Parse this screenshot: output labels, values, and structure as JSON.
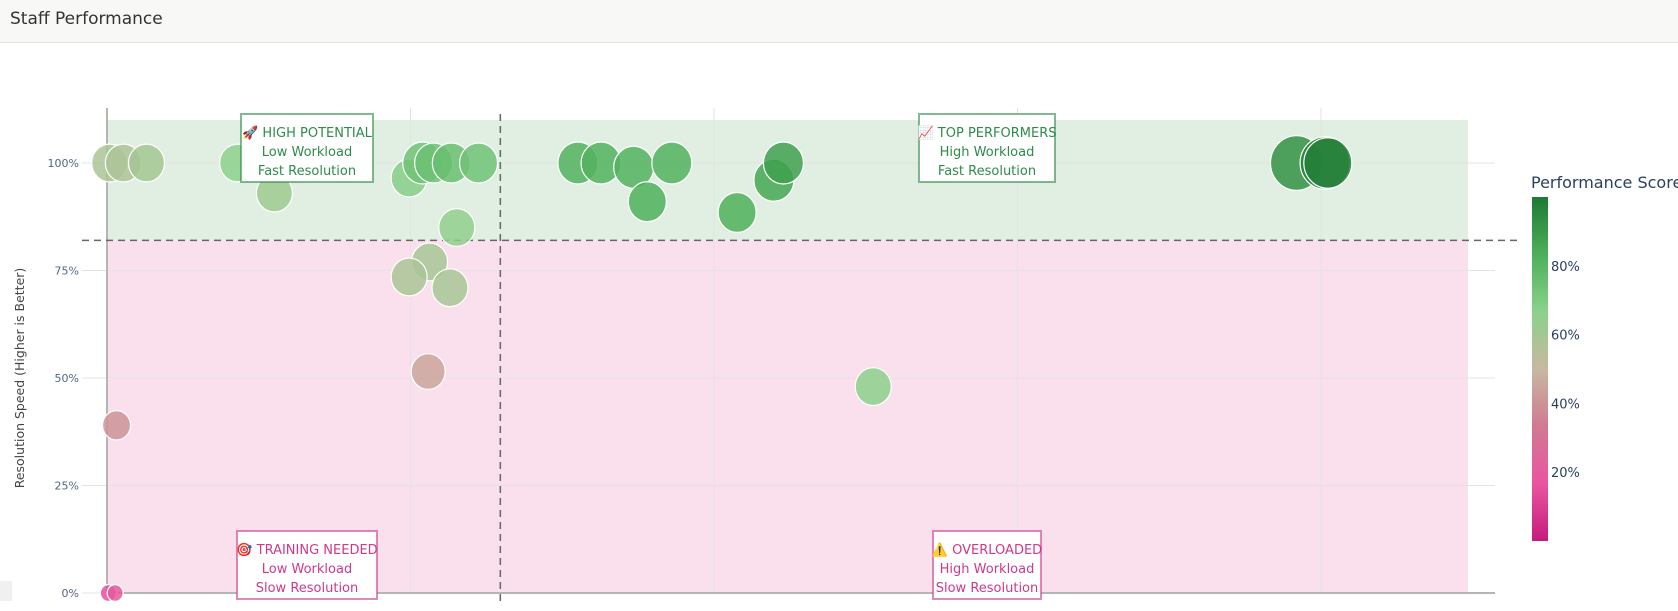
{
  "header": {
    "title": "Staff Performance"
  },
  "chart_data": {
    "type": "scatter",
    "title": "",
    "xlabel": "",
    "ylabel": "Resolution Speed (Higher is Better)",
    "ylim": [
      0,
      1.1
    ],
    "xlim": [
      0,
      1.0
    ],
    "y_ticks": [
      {
        "value": 0.0,
        "label": "0%"
      },
      {
        "value": 0.25,
        "label": "25%"
      },
      {
        "value": 0.5,
        "label": "50%"
      },
      {
        "value": 0.75,
        "label": "75%"
      },
      {
        "value": 1.0,
        "label": "100%"
      }
    ],
    "x_gridlines": [
      0.223,
      0.446,
      0.669,
      0.892
    ],
    "x_threshold": 0.289,
    "y_threshold": 0.82,
    "colorbar": {
      "title": "Performance Score",
      "range": [
        0,
        1
      ],
      "ticks": [
        {
          "value": 0.2,
          "label": "20%"
        },
        {
          "value": 0.4,
          "label": "40%"
        },
        {
          "value": 0.6,
          "label": "60%"
        },
        {
          "value": 0.8,
          "label": "80%"
        }
      ],
      "colors": [
        "#c51b7d",
        "#e9559f",
        "#d07a93",
        "#c8b8a0",
        "#8bd18b",
        "#4daf5a",
        "#1e7a34"
      ]
    },
    "quadrants": [
      {
        "id": "high-potential",
        "icon": "🚀",
        "title": "HIGH POTENTIAL",
        "line2": "Low Workload",
        "line3": "Fast Resolution",
        "color": "#2e8b4a"
      },
      {
        "id": "top-performers",
        "icon": "📈",
        "title": "TOP PERFORMERS",
        "line2": "High Workload",
        "line3": "Fast Resolution",
        "color": "#2e8b4a"
      },
      {
        "id": "training-needed",
        "icon": "🎯",
        "title": "TRAINING NEEDED",
        "line2": "Low Workload",
        "line3": "Slow Resolution",
        "color": "#cc3a8a"
      },
      {
        "id": "overloaded",
        "icon": "⚠️",
        "title": "OVERLOADED",
        "line2": "High Workload",
        "line3": "Slow Resolution",
        "color": "#cc3a8a"
      }
    ],
    "points": [
      {
        "x": 0.002,
        "y": 1.0,
        "score": 0.58,
        "size": 36
      },
      {
        "x": 0.012,
        "y": 1.0,
        "score": 0.58,
        "size": 36
      },
      {
        "x": 0.029,
        "y": 1.0,
        "score": 0.6,
        "size": 36
      },
      {
        "x": 0.096,
        "y": 1.0,
        "score": 0.66,
        "size": 36
      },
      {
        "x": 0.123,
        "y": 0.93,
        "score": 0.62,
        "size": 36
      },
      {
        "x": 0.152,
        "y": 1.0,
        "score": 0.7,
        "size": 36
      },
      {
        "x": 0.222,
        "y": 0.965,
        "score": 0.68,
        "size": 36
      },
      {
        "x": 0.232,
        "y": 1.0,
        "score": 0.74,
        "size": 40
      },
      {
        "x": 0.24,
        "y": 1.0,
        "score": 0.75,
        "size": 38
      },
      {
        "x": 0.253,
        "y": 1.0,
        "score": 0.76,
        "size": 38
      },
      {
        "x": 0.273,
        "y": 1.0,
        "score": 0.74,
        "size": 38
      },
      {
        "x": 0.257,
        "y": 0.85,
        "score": 0.65,
        "size": 36
      },
      {
        "x": 0.237,
        "y": 0.77,
        "score": 0.59,
        "size": 36
      },
      {
        "x": 0.222,
        "y": 0.735,
        "score": 0.58,
        "size": 36
      },
      {
        "x": 0.252,
        "y": 0.71,
        "score": 0.59,
        "size": 36
      },
      {
        "x": 0.236,
        "y": 0.515,
        "score": 0.45,
        "size": 34
      },
      {
        "x": 0.007,
        "y": 0.39,
        "score": 0.4,
        "size": 28
      },
      {
        "x": 0.001,
        "y": 0.0,
        "score": 0.15,
        "size": 16
      },
      {
        "x": 0.006,
        "y": 0.0,
        "score": 0.2,
        "size": 16
      },
      {
        "x": 0.346,
        "y": 1.0,
        "score": 0.82,
        "size": 40
      },
      {
        "x": 0.363,
        "y": 1.0,
        "score": 0.82,
        "size": 40
      },
      {
        "x": 0.387,
        "y": 0.99,
        "score": 0.82,
        "size": 40
      },
      {
        "x": 0.397,
        "y": 0.91,
        "score": 0.83,
        "size": 38
      },
      {
        "x": 0.415,
        "y": 1.0,
        "score": 0.82,
        "size": 40
      },
      {
        "x": 0.463,
        "y": 0.885,
        "score": 0.83,
        "size": 38
      },
      {
        "x": 0.49,
        "y": 0.96,
        "score": 0.86,
        "size": 40
      },
      {
        "x": 0.497,
        "y": 1.0,
        "score": 0.88,
        "size": 40
      },
      {
        "x": 0.563,
        "y": 0.48,
        "score": 0.66,
        "size": 36
      },
      {
        "x": 0.874,
        "y": 1.0,
        "score": 0.93,
        "size": 52
      },
      {
        "x": 0.895,
        "y": 1.0,
        "score": 0.97,
        "size": 50
      },
      {
        "x": 0.897,
        "y": 1.0,
        "score": 0.98,
        "size": 48
      }
    ]
  }
}
